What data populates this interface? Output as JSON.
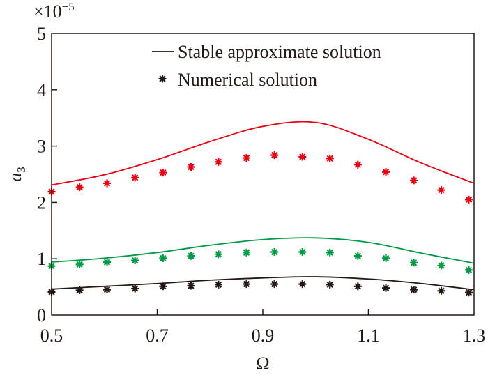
{
  "chart_data": {
    "type": "line",
    "xlabel": "Ω",
    "ylabel": "a",
    "ylabel_subscript": "3",
    "y_multiplier": "×10",
    "y_multiplier_exp": "−5",
    "xlim": [
      0.5,
      1.3
    ],
    "ylim": [
      0,
      5
    ],
    "xticks": [
      "0.5",
      "0.7",
      "0.9",
      "1.1",
      "1.3"
    ],
    "yticks": [
      "0",
      "1",
      "2",
      "3",
      "4",
      "5"
    ],
    "grid": false,
    "legend": {
      "placement": "top-right",
      "entries": [
        {
          "label": "Stable approximate solution",
          "marker": "line"
        },
        {
          "label": "Numerical solution",
          "marker": "asterisk"
        }
      ]
    },
    "colors": {
      "red": "#e60012",
      "green": "#009944",
      "black": "#231815"
    },
    "lines": [
      {
        "color": "red",
        "x": [
          0.5,
          0.6,
          0.7,
          0.8,
          0.9,
          1.0,
          1.1,
          1.2,
          1.3
        ],
        "y": [
          2.31,
          2.49,
          2.76,
          3.08,
          3.35,
          3.42,
          3.12,
          2.7,
          2.34
        ]
      },
      {
        "color": "green",
        "x": [
          0.5,
          0.6,
          0.7,
          0.8,
          0.9,
          1.0,
          1.1,
          1.2,
          1.3
        ],
        "y": [
          0.94,
          1.01,
          1.11,
          1.24,
          1.34,
          1.37,
          1.29,
          1.1,
          0.92
        ]
      },
      {
        "color": "black",
        "x": [
          0.5,
          0.6,
          0.7,
          0.8,
          0.9,
          1.0,
          1.1,
          1.2,
          1.3
        ],
        "y": [
          0.46,
          0.51,
          0.56,
          0.62,
          0.66,
          0.68,
          0.64,
          0.56,
          0.45
        ]
      }
    ],
    "points_x": [
      0.5,
      0.553,
      0.605,
      0.658,
      0.711,
      0.764,
      0.816,
      0.869,
      0.922,
      0.975,
      1.027,
      1.08,
      1.133,
      1.186,
      1.238,
      1.29
    ],
    "points": [
      {
        "color": "red",
        "y": [
          2.19,
          2.27,
          2.34,
          2.44,
          2.53,
          2.63,
          2.72,
          2.79,
          2.84,
          2.81,
          2.78,
          2.67,
          2.54,
          2.39,
          2.22,
          2.05
        ]
      },
      {
        "color": "green",
        "y": [
          0.87,
          0.9,
          0.94,
          0.97,
          1.01,
          1.05,
          1.08,
          1.11,
          1.12,
          1.12,
          1.11,
          1.05,
          1.01,
          0.93,
          0.88,
          0.8
        ]
      },
      {
        "color": "black",
        "y": [
          0.41,
          0.44,
          0.45,
          0.47,
          0.51,
          0.52,
          0.54,
          0.55,
          0.55,
          0.55,
          0.54,
          0.51,
          0.48,
          0.45,
          0.43,
          0.4
        ]
      }
    ]
  }
}
